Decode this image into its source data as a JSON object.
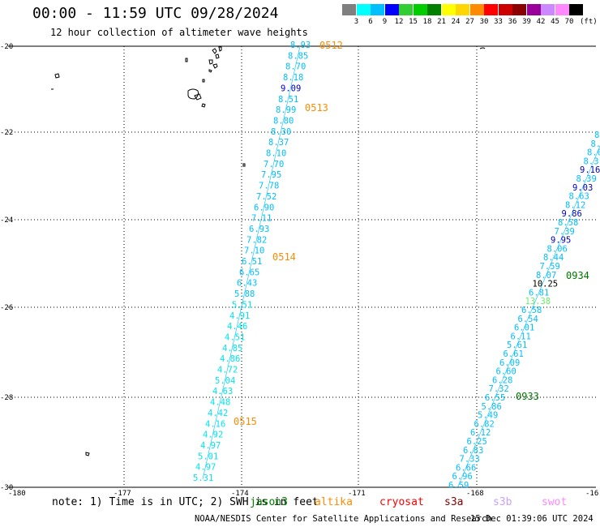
{
  "header": {
    "title": "00:00 - 11:59 UTC 09/28/2024",
    "subtitle": "12 hour collection of altimeter wave heights"
  },
  "legend": {
    "unit": "(ft)",
    "bins": [
      {
        "label": "3",
        "color": "#7f7f7f"
      },
      {
        "label": "6",
        "color": "#00ffff"
      },
      {
        "label": "9",
        "color": "#00bfff"
      },
      {
        "label": "12",
        "color": "#0000ff"
      },
      {
        "label": "15",
        "color": "#32cd32"
      },
      {
        "label": "18",
        "color": "#00cc00"
      },
      {
        "label": "21",
        "color": "#008000"
      },
      {
        "label": "24",
        "color": "#ffff00"
      },
      {
        "label": "27",
        "color": "#ffd700"
      },
      {
        "label": "30",
        "color": "#ff8c00"
      },
      {
        "label": "33",
        "color": "#ff0000"
      },
      {
        "label": "36",
        "color": "#cc0000"
      },
      {
        "label": "39",
        "color": "#8b0000"
      },
      {
        "label": "42",
        "color": "#990099"
      },
      {
        "label": "45",
        "color": "#cc88ff"
      },
      {
        "label": "70",
        "color": "#ff88ff"
      },
      {
        "label": "",
        "color": "#000000"
      }
    ]
  },
  "axes": {
    "lat_labels": [
      "-20",
      "-22",
      "-24",
      "-26",
      "-28",
      "-30"
    ],
    "lon_labels": [
      "-180",
      "-177",
      "-174",
      "-171",
      "-168",
      "-16"
    ]
  },
  "tracks": {
    "west": {
      "values": [
        "8.93",
        "8.85",
        "8.70",
        "8.18",
        "9.09",
        "8.51",
        "8.99",
        "8.80",
        "8.30",
        "8.37",
        "8.10",
        "7.70",
        "7.95",
        "7.78",
        "7.52",
        "6.90",
        "7.11",
        "6.93",
        "7.82",
        "7.10",
        "6.51",
        "6.65",
        "6.43",
        "5.88",
        "5.51",
        "4.91",
        "4.46",
        "4.51",
        "4.85",
        "4.86",
        "4.72",
        "5.04",
        "4.63",
        "4.48",
        "4.42",
        "4.16",
        "4.92",
        "4.97",
        "5.01",
        "4.97",
        "5.31"
      ],
      "colors": [
        "#00bfff",
        "#00bfff",
        "#00bfff",
        "#00bfff",
        "#0000cc",
        "#00bfff",
        "#00bfff",
        "#00bfff",
        "#00bfff",
        "#00bfff",
        "#00bfff",
        "#00bfff",
        "#00bfff",
        "#00bfff",
        "#00bfff",
        "#00bfff",
        "#00bfff",
        "#00bfff",
        "#00bfff",
        "#00bfff",
        "#00bfff",
        "#00bfff",
        "#00bfff",
        "#00bfff",
        "#00e5ee",
        "#00e5ee",
        "#00e5ee",
        "#00e5ee",
        "#00e5ee",
        "#00e5ee",
        "#00e5ee",
        "#00e5ee",
        "#00e5ee",
        "#00e5ee",
        "#00e5ee",
        "#00e5ee",
        "#00e5ee",
        "#00e5ee",
        "#00e5ee",
        "#00e5ee",
        "#00e5ee"
      ],
      "passes": [
        {
          "label": "0512",
          "color": "#ff8c00"
        },
        {
          "label": "0513",
          "color": "#ff8c00"
        },
        {
          "label": "0514",
          "color": "#ff8c00"
        },
        {
          "label": "0515",
          "color": "#ff8c00"
        }
      ]
    },
    "east": {
      "values": [
        "8",
        "8.",
        "8.0",
        "8.3",
        "9.16",
        "8.39",
        "9.03",
        "8.63",
        "8.12",
        "9.86",
        "8.58",
        "7.39",
        "9.95",
        "8.06",
        "8.44",
        "7.59",
        "8.07",
        "10.25",
        "6.81",
        "13.38",
        "6.58",
        "6.54",
        "6.01",
        "6.11",
        "5.61",
        "6.61",
        "6.09",
        "6.60",
        "6.28",
        "7.32",
        "6.55",
        "5.86",
        "5.49",
        "6.82",
        "6.12",
        "6.25",
        "6.83",
        "7.33",
        "6.66",
        "6.96",
        "6.59"
      ],
      "colors": [
        "#00bfff",
        "#00bfff",
        "#00bfff",
        "#00bfff",
        "#0000cc",
        "#00bfff",
        "#0000cc",
        "#00bfff",
        "#00bfff",
        "#0000cc",
        "#00bfff",
        "#00bfff",
        "#0000cc",
        "#00bfff",
        "#00bfff",
        "#00bfff",
        "#00bfff",
        "#000000",
        "#00bfff",
        "#66ee66",
        "#00bfff",
        "#00bfff",
        "#00bfff",
        "#00bfff",
        "#00bfff",
        "#00bfff",
        "#00bfff",
        "#00bfff",
        "#00bfff",
        "#00bfff",
        "#00bfff",
        "#00bfff",
        "#00bfff",
        "#00bfff",
        "#00bfff",
        "#00bfff",
        "#00bfff",
        "#00bfff",
        "#00bfff",
        "#00bfff",
        "#00bfff"
      ],
      "passes": [
        {
          "label": "0934",
          "color": "#007700"
        },
        {
          "label": "0933",
          "color": "#007700"
        }
      ]
    }
  },
  "note": "note: 1) Time is in UTC; 2) SWH is in feet",
  "satellites": [
    {
      "label": "jason3",
      "color": "#008000"
    },
    {
      "label": "altika",
      "color": "#ff8c00"
    },
    {
      "label": "cryosat",
      "color": "#ff0000"
    },
    {
      "label": "s3a",
      "color": "#8b0000"
    },
    {
      "label": "s3b",
      "color": "#c8a0ff"
    },
    {
      "label": "swot",
      "color": "#ff88ff"
    }
  ],
  "footer": {
    "credit": "NOAA/NESDIS Center for Satellite Applications and Research",
    "timestamp": "15 Dec 01:39:06 UTC 2024"
  }
}
